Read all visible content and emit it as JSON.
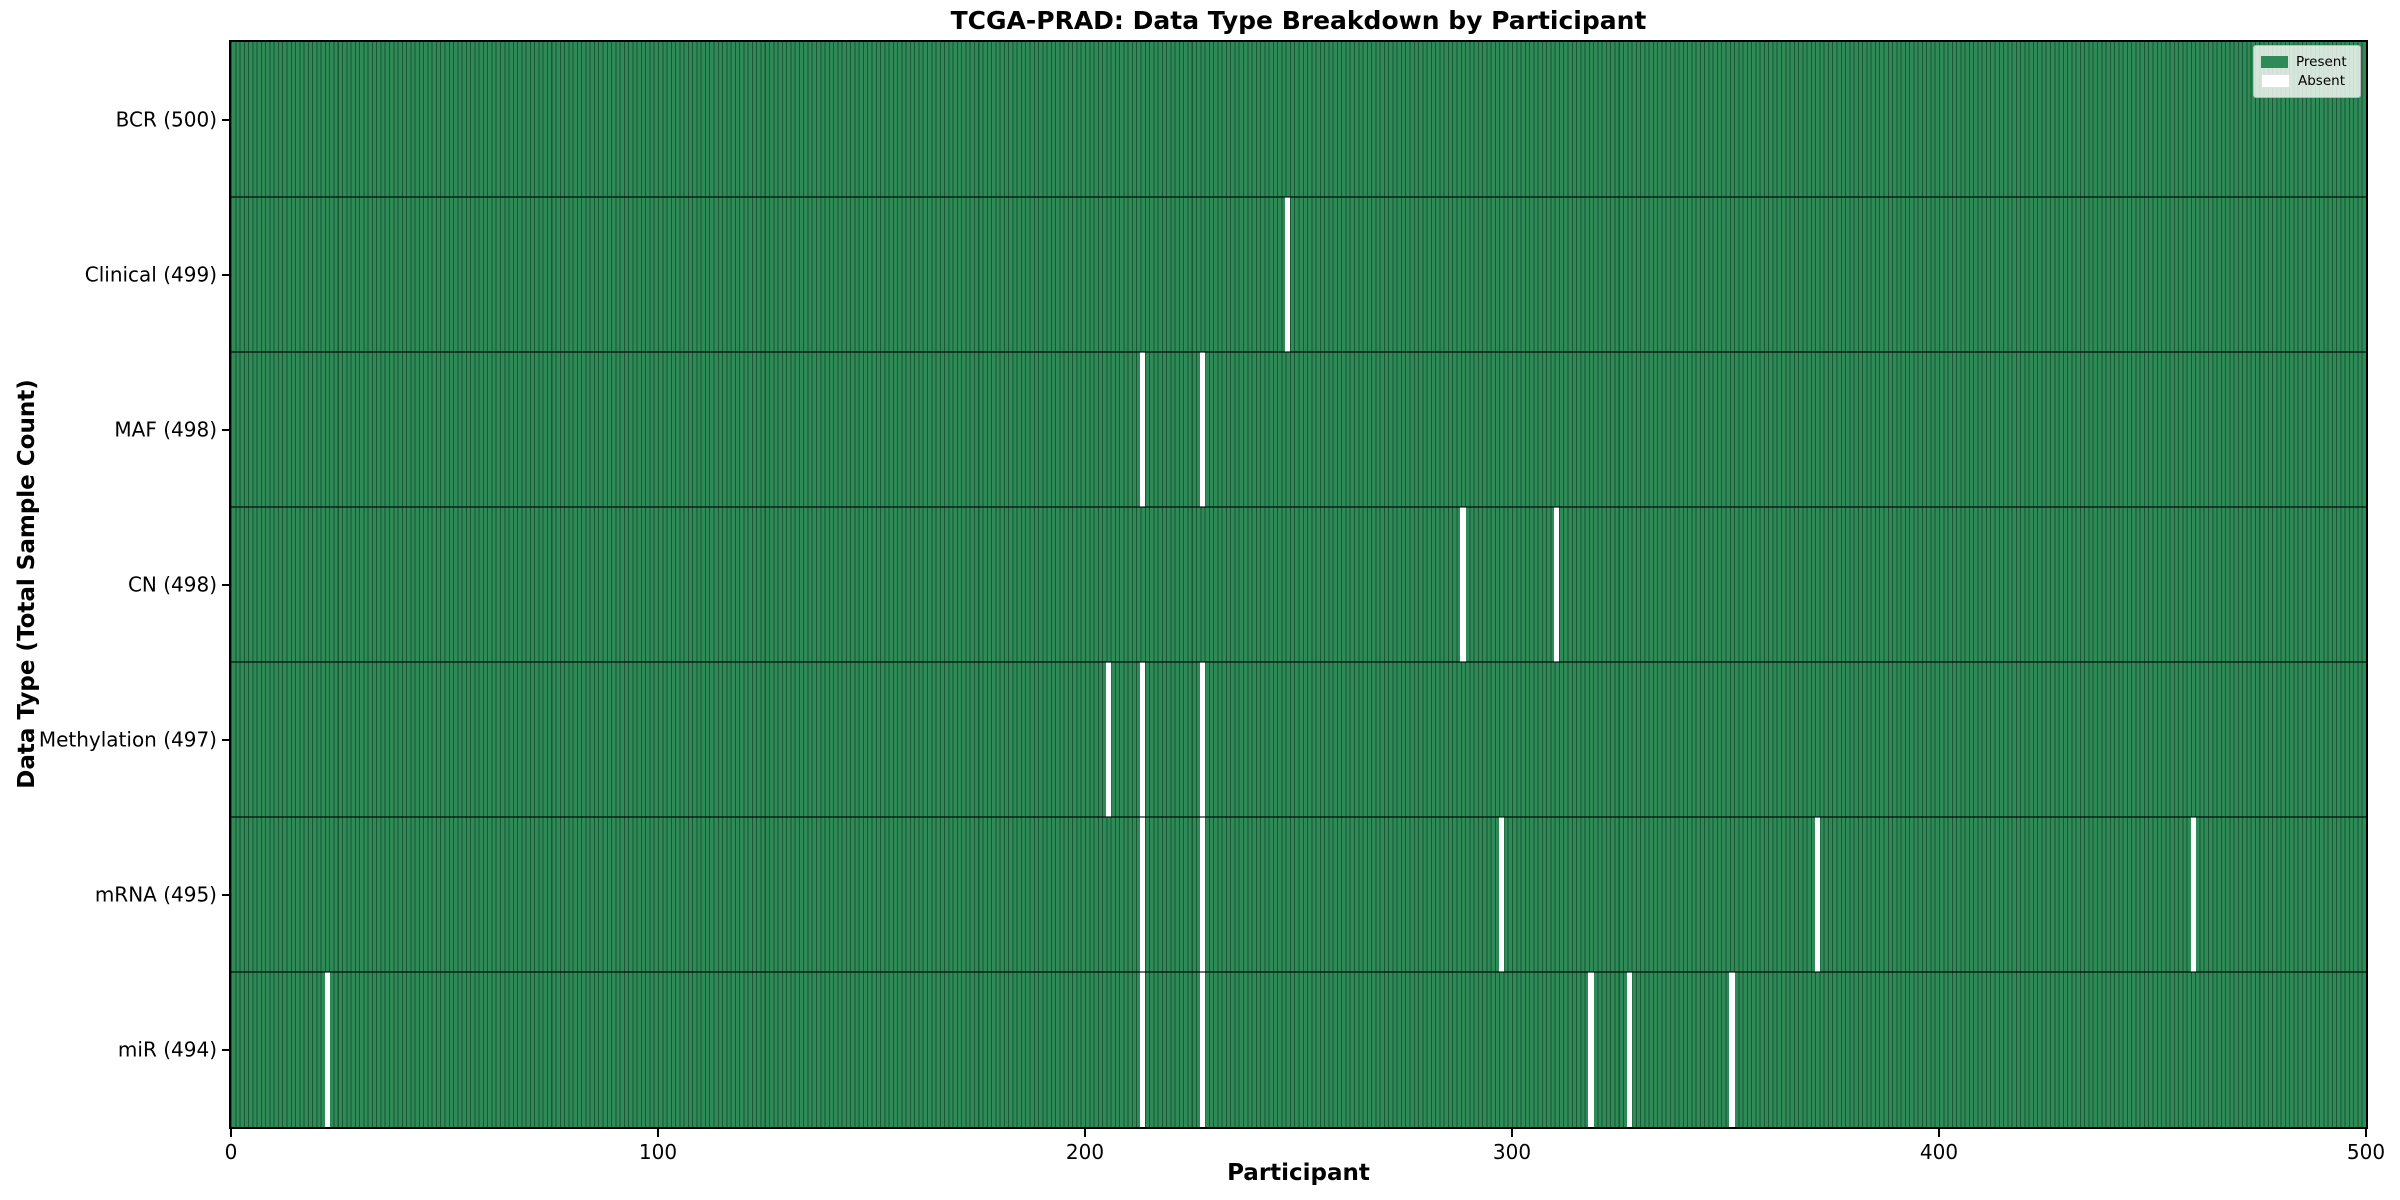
{
  "chart_data": {
    "type": "heatmap",
    "title": "TCGA-PRAD: Data Type Breakdown by Participant",
    "xlabel": "Participant",
    "ylabel": "Data Type (Total Sample Count)",
    "xlim": [
      0,
      500
    ],
    "x_ticks": [
      0,
      100,
      200,
      300,
      400,
      500
    ],
    "n_participants": 500,
    "grid": false,
    "legend": {
      "position": "upper right",
      "entries": [
        {
          "label": "Present",
          "color": "#2e8b57"
        },
        {
          "label": "Absent",
          "color": "#ffffff"
        }
      ]
    },
    "colors": {
      "present": "#2e8b57",
      "absent": "#ffffff",
      "cell_edge": "rgba(0,12,6,0.42)",
      "row_separator": "rgba(0,0,0,0.55)"
    },
    "rows": [
      {
        "label": "BCR (500)",
        "total": 500,
        "absent_participants": []
      },
      {
        "label": "Clinical (499)",
        "total": 499,
        "absent_participants": [
          247
        ]
      },
      {
        "label": "MAF (498)",
        "total": 498,
        "absent_participants": [
          213,
          227
        ]
      },
      {
        "label": "CN (498)",
        "total": 498,
        "absent_participants": [
          288,
          310
        ]
      },
      {
        "label": "Methylation (497)",
        "total": 497,
        "absent_participants": [
          205,
          213,
          227
        ]
      },
      {
        "label": "mRNA (495)",
        "total": 495,
        "absent_participants": [
          213,
          227,
          297,
          371,
          459
        ]
      },
      {
        "label": "miR (494)",
        "total": 494,
        "absent_participants": [
          22,
          213,
          227,
          318,
          327,
          351
        ]
      }
    ]
  }
}
